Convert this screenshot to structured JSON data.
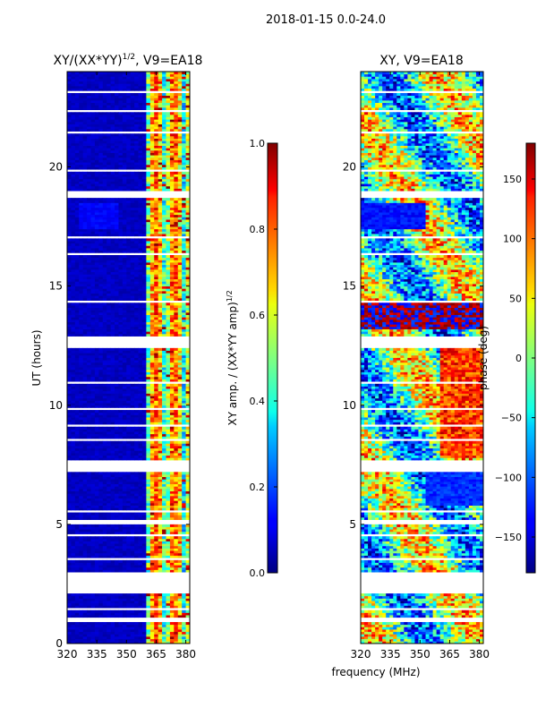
{
  "figure_title": "2018-01-15 0.0-24.0",
  "chart_data": [
    {
      "type": "heatmap",
      "title": "XY/(XX*YY)^{1/2}, V9=EA18",
      "title_main": "XY/(XX*YY)",
      "title_sup": "1/2",
      "title_tail": ", V9=EA18",
      "xlabel": "",
      "ylabel": "UT (hours)",
      "xlim": [
        320,
        382
      ],
      "ylim": [
        0,
        24
      ],
      "xticks": [
        320,
        335,
        350,
        365,
        380
      ],
      "yticks": [
        0,
        5,
        10,
        15,
        20
      ],
      "colormap": "jet",
      "colorbar": {
        "label": "XY amp. / (XX*YY amp)^{1/2}",
        "label_main": "XY amp. / (XX*YY amp)",
        "label_sup": "1/2",
        "range": [
          0.0,
          1.0
        ],
        "ticks": [
          "0.0",
          "0.2",
          "0.4",
          "0.6",
          "0.8",
          "1.0"
        ]
      }
    },
    {
      "type": "heatmap",
      "title": "XY, V9=EA18",
      "xlabel": "frequency (MHz)",
      "ylabel": "",
      "xlim": [
        320,
        382
      ],
      "ylim": [
        0,
        24
      ],
      "xticks": [
        320,
        335,
        350,
        365,
        380
      ],
      "yticks": [
        5,
        10,
        15,
        20
      ],
      "colormap": "jet",
      "colorbar": {
        "label": "phase (deg)",
        "range": [
          -180,
          180
        ],
        "ticks": [
          "150",
          "100",
          "50",
          "0",
          "−50",
          "−100",
          "−150"
        ]
      }
    }
  ],
  "data_gaps_hours": [
    [
      0.95,
      1.15
    ],
    [
      1.45,
      1.55
    ],
    [
      2.1,
      3.0
    ],
    [
      3.55,
      3.62
    ],
    [
      4.5,
      4.62
    ],
    [
      5.05,
      5.25
    ],
    [
      5.55,
      5.65
    ],
    [
      7.25,
      7.7
    ],
    [
      8.5,
      8.56
    ],
    [
      9.1,
      9.16
    ],
    [
      9.85,
      9.9
    ],
    [
      10.9,
      10.96
    ],
    [
      12.45,
      12.9
    ],
    [
      14.3,
      14.36
    ],
    [
      15.5,
      15.55
    ],
    [
      16.3,
      16.36
    ],
    [
      17.05,
      17.1
    ],
    [
      18.75,
      19.0
    ],
    [
      19.85,
      19.9
    ],
    [
      21.45,
      21.5
    ],
    [
      22.3,
      22.38
    ],
    [
      23.1,
      23.16
    ]
  ]
}
